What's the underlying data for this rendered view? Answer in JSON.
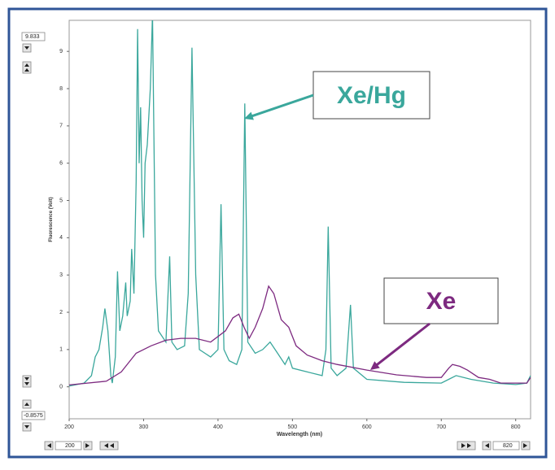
{
  "chart_data": {
    "type": "line",
    "x_label": "Wavelength (nm)",
    "y_label": "Fluorescence (Volt)",
    "xlim": [
      200,
      820
    ],
    "ylim": [
      -0.8575,
      9.833
    ],
    "xticks": [
      200,
      300,
      400,
      500,
      600,
      700,
      800
    ],
    "yticks": [
      0,
      1,
      2,
      3,
      4,
      5,
      6,
      7,
      8,
      9
    ],
    "series": [
      {
        "name": "Xe/Hg",
        "color": "#3aa79c",
        "x": [
          200,
          220,
          230,
          235,
          240,
          245,
          248,
          252,
          256,
          258,
          262,
          265,
          268,
          272,
          276,
          278,
          282,
          284,
          287,
          290,
          292,
          294,
          296,
          298,
          300,
          302,
          305,
          309,
          312,
          316,
          320,
          330,
          335,
          338,
          345,
          355,
          360,
          365,
          370,
          375,
          390,
          400,
          404,
          408,
          415,
          425,
          432,
          436,
          440,
          450,
          460,
          470,
          480,
          490,
          495,
          500,
          520,
          540,
          545,
          548,
          552,
          560,
          572,
          578,
          582,
          600,
          650,
          700,
          710,
          720,
          740,
          770,
          800,
          815,
          820
        ],
        "values": [
          0.02,
          0.1,
          0.3,
          0.8,
          1.0,
          1.6,
          2.1,
          1.5,
          0.3,
          0.1,
          0.8,
          3.1,
          1.5,
          1.9,
          2.8,
          1.9,
          2.3,
          3.7,
          2.5,
          5.5,
          9.6,
          6.0,
          7.5,
          5.0,
          4.0,
          6.0,
          6.5,
          8.0,
          10.0,
          3.0,
          1.5,
          1.2,
          3.5,
          1.2,
          1.0,
          1.1,
          2.5,
          9.1,
          3.0,
          1.0,
          0.8,
          1.0,
          4.9,
          1.0,
          0.7,
          0.6,
          1.0,
          7.6,
          1.2,
          0.9,
          1.0,
          1.2,
          0.9,
          0.6,
          0.8,
          0.5,
          0.4,
          0.3,
          1.0,
          4.3,
          0.5,
          0.3,
          0.5,
          2.2,
          0.5,
          0.2,
          0.12,
          0.1,
          0.2,
          0.3,
          0.2,
          0.1,
          0.06,
          0.1,
          0.3
        ]
      },
      {
        "name": "Xe",
        "color": "#7d2a80",
        "x": [
          200,
          250,
          270,
          290,
          310,
          330,
          350,
          370,
          390,
          410,
          420,
          428,
          435,
          442,
          450,
          460,
          468,
          475,
          485,
          495,
          505,
          520,
          540,
          560,
          600,
          640,
          680,
          700,
          710,
          715,
          725,
          735,
          750,
          765,
          780,
          800,
          815,
          820
        ],
        "values": [
          0.05,
          0.15,
          0.4,
          0.9,
          1.1,
          1.25,
          1.3,
          1.3,
          1.2,
          1.5,
          1.85,
          1.95,
          1.6,
          1.3,
          1.6,
          2.1,
          2.7,
          2.5,
          1.8,
          1.6,
          1.1,
          0.85,
          0.7,
          0.6,
          0.45,
          0.32,
          0.25,
          0.25,
          0.5,
          0.6,
          0.55,
          0.45,
          0.25,
          0.2,
          0.1,
          0.1,
          0.1,
          0.25
        ]
      }
    ]
  }
}
